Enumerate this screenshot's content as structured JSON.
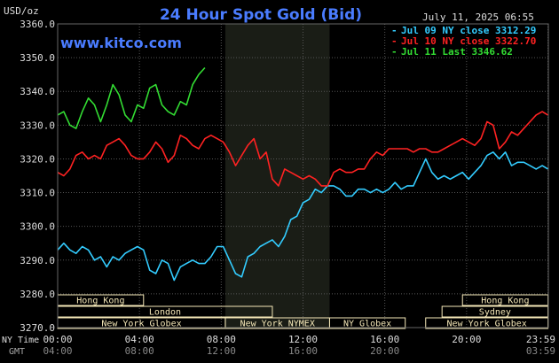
{
  "chart_data": {
    "type": "line",
    "title": "24 Hour Spot Gold (Bid)",
    "watermark": "www.kitco.com",
    "date_label": "July 11, 2025 06:55",
    "ylabel": "USD/oz",
    "ylim": [
      3270,
      3360
    ],
    "y_ticks": [
      "3360.0",
      "3350.0",
      "3340.0",
      "3330.0",
      "3320.0",
      "3310.0",
      "3300.0",
      "3290.0",
      "3280.0",
      "3270.0"
    ],
    "y_tick_values": [
      3360,
      3350,
      3340,
      3330,
      3320,
      3310,
      3300,
      3290,
      3280,
      3270
    ],
    "xlim": [
      0,
      24
    ],
    "x_ticks_ny": [
      "00:00",
      "04:00",
      "08:00",
      "12:00",
      "16:00",
      "20:00",
      "23:59"
    ],
    "x_ticks_gmt": [
      "04:00",
      "08:00",
      "12:00",
      "16:00",
      "20:00",
      "",
      "03:59"
    ],
    "x_tick_hours": [
      0,
      4,
      8,
      12,
      16,
      20,
      23.98
    ],
    "ny_time_label": "NY Time",
    "gmt_label": "GMT",
    "shaded_hours": [
      8.2,
      13.3
    ],
    "legend": [
      {
        "label": "Jul 09 NY close 3312.29",
        "color": "#33ccff"
      },
      {
        "label": "Jul 10 NY close 3322.70",
        "color": "#ff2222"
      },
      {
        "label": "Jul 11 Last 3346.62",
        "color": "#33dd33"
      }
    ],
    "colors": {
      "background": "#000000",
      "plot": "#000000",
      "shade": "#1a1d16",
      "grid": "#555555",
      "title": "#4a7cff",
      "watermark": "#4a7cff",
      "session_box": "#f5e8b8"
    },
    "sessions": [
      {
        "label": "Hong Kong",
        "start": 0,
        "end": 4.2,
        "row": 0
      },
      {
        "label": "London",
        "start": 0,
        "end": 10.5,
        "row": 1
      },
      {
        "label": "New York Globex",
        "start": 0,
        "end": 8.2,
        "row": 2
      },
      {
        "label": "New York NYMEX",
        "start": 8.2,
        "end": 13.3,
        "row": 2
      },
      {
        "label": "NY Globex",
        "start": 13.3,
        "end": 17.0,
        "row": 2
      },
      {
        "label": "Hong Kong",
        "start": 19.8,
        "end": 23.98,
        "row": 0
      },
      {
        "label": "Sydney",
        "start": 18.8,
        "end": 23.98,
        "row": 1
      },
      {
        "label": "New York Globex",
        "start": 18.0,
        "end": 23.98,
        "row": 2
      }
    ],
    "series": [
      {
        "name": "Jul 09",
        "color": "#33ccff",
        "x": [
          0,
          0.3,
          0.6,
          0.9,
          1.2,
          1.5,
          1.8,
          2.1,
          2.4,
          2.7,
          3.0,
          3.3,
          3.6,
          3.9,
          4.2,
          4.5,
          4.8,
          5.1,
          5.4,
          5.7,
          6.0,
          6.3,
          6.6,
          6.9,
          7.2,
          7.5,
          7.8,
          8.1,
          8.4,
          8.7,
          9.0,
          9.3,
          9.6,
          9.9,
          10.2,
          10.5,
          10.8,
          11.1,
          11.4,
          11.7,
          12.0,
          12.3,
          12.6,
          12.9,
          13.2,
          13.5,
          13.8,
          14.1,
          14.4,
          14.7,
          15.0,
          15.3,
          15.6,
          15.9,
          16.2,
          16.5,
          16.8,
          17.1,
          17.4,
          17.7,
          18.0,
          18.3,
          18.6,
          18.9,
          19.2,
          19.5,
          19.8,
          20.1,
          20.4,
          20.7,
          21.0,
          21.3,
          21.6,
          21.9,
          22.2,
          22.5,
          22.8,
          23.1,
          23.4,
          23.7,
          23.98
        ],
        "y": [
          3293,
          3295,
          3293,
          3292,
          3294,
          3293,
          3290,
          3291,
          3288,
          3291,
          3290,
          3292,
          3293,
          3294,
          3293,
          3287,
          3286,
          3290,
          3289,
          3284,
          3288,
          3289,
          3290,
          3289,
          3289,
          3291,
          3294,
          3294,
          3290,
          3286,
          3285,
          3291,
          3292,
          3294,
          3295,
          3296,
          3294,
          3297,
          3302,
          3303,
          3307,
          3308,
          3311,
          3310,
          3312,
          3312,
          3311,
          3309,
          3309,
          3311,
          3311,
          3310,
          3311,
          3310,
          3311,
          3313,
          3311,
          3312,
          3312,
          3316,
          3320,
          3316,
          3314,
          3315,
          3314,
          3315,
          3316,
          3314,
          3316,
          3318,
          3321,
          3322,
          3320,
          3322,
          3318,
          3319,
          3319,
          3318,
          3317,
          3318,
          3317
        ]
      },
      {
        "name": "Jul 10",
        "color": "#ff2222",
        "x": [
          0,
          0.3,
          0.6,
          0.9,
          1.2,
          1.5,
          1.8,
          2.1,
          2.4,
          2.7,
          3.0,
          3.3,
          3.6,
          3.9,
          4.2,
          4.5,
          4.8,
          5.1,
          5.4,
          5.7,
          6.0,
          6.3,
          6.6,
          6.9,
          7.2,
          7.5,
          7.8,
          8.1,
          8.4,
          8.7,
          9.0,
          9.3,
          9.6,
          9.9,
          10.2,
          10.5,
          10.8,
          11.1,
          11.4,
          11.7,
          12.0,
          12.3,
          12.6,
          12.9,
          13.2,
          13.5,
          13.8,
          14.1,
          14.4,
          14.7,
          15.0,
          15.3,
          15.6,
          15.9,
          16.2,
          16.5,
          16.8,
          17.1,
          17.4,
          17.7,
          18.0,
          18.3,
          18.6,
          18.9,
          19.2,
          19.5,
          19.8,
          20.1,
          20.4,
          20.7,
          21.0,
          21.3,
          21.6,
          21.9,
          22.2,
          22.5,
          22.8,
          23.1,
          23.4,
          23.7,
          23.98
        ],
        "y": [
          3316,
          3315,
          3317,
          3321,
          3322,
          3320,
          3321,
          3320,
          3324,
          3325,
          3326,
          3324,
          3321,
          3320,
          3320,
          3322,
          3325,
          3323,
          3319,
          3321,
          3327,
          3326,
          3324,
          3323,
          3326,
          3327,
          3326,
          3325,
          3322,
          3318,
          3321,
          3324,
          3326,
          3320,
          3322,
          3314,
          3312,
          3317,
          3316,
          3315,
          3314,
          3315,
          3314,
          3312,
          3312,
          3316,
          3317,
          3316,
          3316,
          3317,
          3317,
          3320,
          3322,
          3321,
          3323,
          3323,
          3323,
          3323,
          3322,
          3323,
          3323,
          3322,
          3322,
          3323,
          3324,
          3325,
          3326,
          3325,
          3324,
          3326,
          3331,
          3330,
          3323,
          3325,
          3328,
          3327,
          3329,
          3331,
          3333,
          3334,
          3333
        ]
      },
      {
        "name": "Jul 11",
        "color": "#33dd33",
        "x": [
          0,
          0.3,
          0.6,
          0.9,
          1.2,
          1.5,
          1.8,
          2.1,
          2.4,
          2.7,
          3.0,
          3.3,
          3.6,
          3.9,
          4.2,
          4.5,
          4.8,
          5.1,
          5.4,
          5.7,
          6.0,
          6.3,
          6.6,
          6.9,
          7.2
        ],
        "y": [
          3333,
          3334,
          3330,
          3329,
          3334,
          3338,
          3336,
          3331,
          3336,
          3342,
          3339,
          3333,
          3331,
          3336,
          3335,
          3341,
          3342,
          3336,
          3334,
          3333,
          3337,
          3336,
          3342,
          3345,
          3347
        ]
      }
    ]
  }
}
